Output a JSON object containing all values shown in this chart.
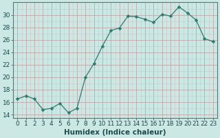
{
  "x": [
    0,
    1,
    2,
    3,
    4,
    5,
    6,
    7,
    8,
    9,
    10,
    11,
    12,
    13,
    14,
    15,
    16,
    17,
    18,
    19,
    20,
    21,
    22,
    23
  ],
  "y": [
    16.5,
    17.0,
    16.5,
    14.8,
    15.0,
    15.8,
    14.3,
    15.0,
    20.0,
    22.2,
    25.0,
    27.5,
    27.9,
    29.8,
    29.7,
    29.3,
    28.8,
    30.1,
    29.8,
    31.3,
    30.3,
    29.2,
    26.2,
    25.7
  ],
  "line_color": "#2d7a6e",
  "marker": "D",
  "marker_size": 2.5,
  "bg_color": "#cce8e5",
  "grid_color_major": "#b8a8a8",
  "grid_color_minor": "#d4c0c0",
  "xlabel": "Humidex (Indice chaleur)",
  "ylim": [
    13.5,
    32.0
  ],
  "xlim": [
    -0.5,
    23.5
  ],
  "yticks": [
    14,
    16,
    18,
    20,
    22,
    24,
    26,
    28,
    30
  ],
  "xticks": [
    0,
    1,
    2,
    3,
    4,
    5,
    6,
    7,
    8,
    9,
    10,
    11,
    12,
    13,
    14,
    15,
    16,
    17,
    18,
    19,
    20,
    21,
    22,
    23
  ],
  "xlabel_fontsize": 7.5,
  "tick_fontsize": 6.5,
  "tick_color": "#1a4a4a"
}
